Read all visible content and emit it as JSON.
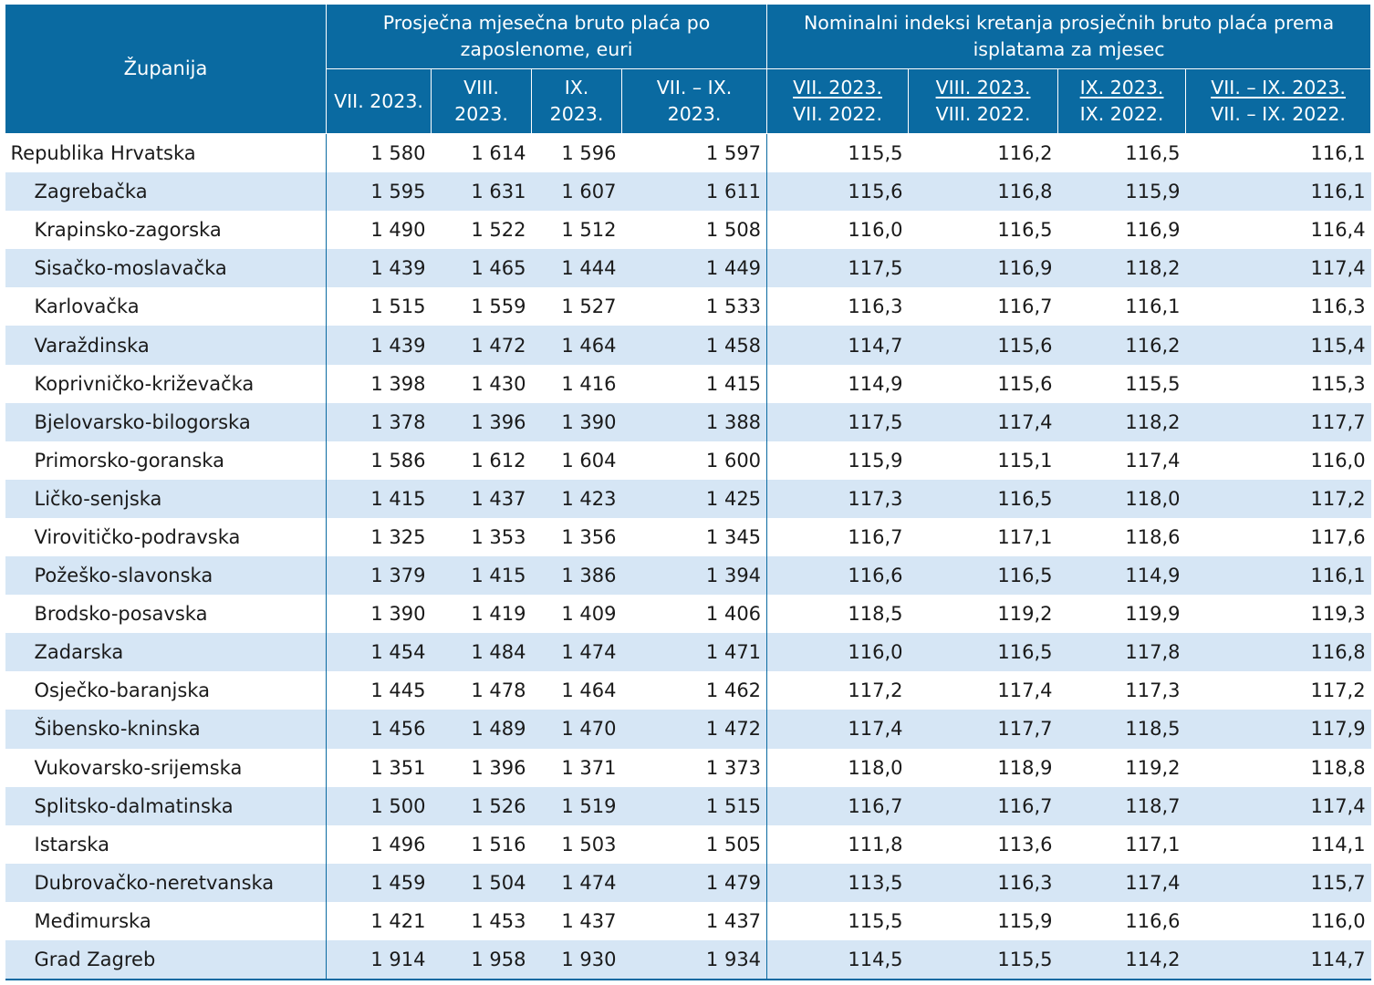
{
  "chart_data": {
    "type": "table",
    "header": {
      "county": "Županija",
      "group_wage": "Prosječna mjesečna bruto plaća po zaposlenome, euri",
      "group_index": "Nominalni indeksi kretanja prosječnih bruto plaća prema isplatama za mjesec",
      "wage_columns": [
        "VII. 2023.",
        "VIII. 2023.",
        "IX. 2023.",
        "VII. – IX. 2023."
      ],
      "index_columns": [
        {
          "num": "VII. 2023.",
          "den": "VII. 2022."
        },
        {
          "num": "VIII. 2023.",
          "den": "VIII. 2022."
        },
        {
          "num": "IX. 2023.",
          "den": "IX. 2022."
        },
        {
          "num": "VII. – IX. 2023.",
          "den": "VII. – IX. 2022."
        }
      ]
    },
    "rows": [
      {
        "name": "Republika Hrvatska",
        "values": [
          "1 580",
          "1 614",
          "1 596",
          "1 597",
          "115,5",
          "116,2",
          "116,5",
          "116,1"
        ]
      },
      {
        "name": "Zagrebačka",
        "values": [
          "1 595",
          "1 631",
          "1 607",
          "1 611",
          "115,6",
          "116,8",
          "115,9",
          "116,1"
        ]
      },
      {
        "name": "Krapinsko-zagorska",
        "values": [
          "1 490",
          "1 522",
          "1 512",
          "1 508",
          "116,0",
          "116,5",
          "116,9",
          "116,4"
        ]
      },
      {
        "name": "Sisačko-moslavačka",
        "values": [
          "1 439",
          "1 465",
          "1 444",
          "1 449",
          "117,5",
          "116,9",
          "118,2",
          "117,4"
        ]
      },
      {
        "name": "Karlovačka",
        "values": [
          "1 515",
          "1 559",
          "1 527",
          "1 533",
          "116,3",
          "116,7",
          "116,1",
          "116,3"
        ]
      },
      {
        "name": "Varaždinska",
        "values": [
          "1 439",
          "1 472",
          "1 464",
          "1 458",
          "114,7",
          "115,6",
          "116,2",
          "115,4"
        ]
      },
      {
        "name": "Koprivničko-križevačka",
        "values": [
          "1 398",
          "1 430",
          "1 416",
          "1 415",
          "114,9",
          "115,6",
          "115,5",
          "115,3"
        ]
      },
      {
        "name": "Bjelovarsko-bilogorska",
        "values": [
          "1 378",
          "1 396",
          "1 390",
          "1 388",
          "117,5",
          "117,4",
          "118,2",
          "117,7"
        ]
      },
      {
        "name": "Primorsko-goranska",
        "values": [
          "1 586",
          "1 612",
          "1 604",
          "1 600",
          "115,9",
          "115,1",
          "117,4",
          "116,0"
        ]
      },
      {
        "name": "Ličko-senjska",
        "values": [
          "1 415",
          "1 437",
          "1 423",
          "1 425",
          "117,3",
          "116,5",
          "118,0",
          "117,2"
        ]
      },
      {
        "name": "Virovitičko-podravska",
        "values": [
          "1 325",
          "1 353",
          "1 356",
          "1 345",
          "116,7",
          "117,1",
          "118,6",
          "117,6"
        ]
      },
      {
        "name": "Požeško-slavonska",
        "values": [
          "1 379",
          "1 415",
          "1 386",
          "1 394",
          "116,6",
          "116,5",
          "114,9",
          "116,1"
        ]
      },
      {
        "name": "Brodsko-posavska",
        "values": [
          "1 390",
          "1 419",
          "1 409",
          "1 406",
          "118,5",
          "119,2",
          "119,9",
          "119,3"
        ]
      },
      {
        "name": "Zadarska",
        "values": [
          "1 454",
          "1 484",
          "1 474",
          "1 471",
          "116,0",
          "116,5",
          "117,8",
          "116,8"
        ]
      },
      {
        "name": "Osječko-baranjska",
        "values": [
          "1 445",
          "1 478",
          "1 464",
          "1 462",
          "117,2",
          "117,4",
          "117,3",
          "117,2"
        ]
      },
      {
        "name": "Šibensko-kninska",
        "values": [
          "1 456",
          "1 489",
          "1 470",
          "1 472",
          "117,4",
          "117,7",
          "118,5",
          "117,9"
        ]
      },
      {
        "name": "Vukovarsko-srijemska",
        "values": [
          "1 351",
          "1 396",
          "1 371",
          "1 373",
          "118,0",
          "118,9",
          "119,2",
          "118,8"
        ]
      },
      {
        "name": "Splitsko-dalmatinska",
        "values": [
          "1 500",
          "1 526",
          "1 519",
          "1 515",
          "116,7",
          "116,7",
          "118,7",
          "117,4"
        ]
      },
      {
        "name": "Istarska",
        "values": [
          "1 496",
          "1 516",
          "1 503",
          "1 505",
          "111,8",
          "113,6",
          "117,1",
          "114,1"
        ]
      },
      {
        "name": "Dubrovačko-neretvanska",
        "values": [
          "1 459",
          "1 504",
          "1 474",
          "1 479",
          "113,5",
          "116,3",
          "117,4",
          "115,7"
        ]
      },
      {
        "name": "Međimurska",
        "values": [
          "1 421",
          "1 453",
          "1 437",
          "1 437",
          "115,5",
          "115,9",
          "116,6",
          "116,0"
        ]
      },
      {
        "name": "Grad Zagreb",
        "values": [
          "1 914",
          "1 958",
          "1 930",
          "1 934",
          "114,5",
          "115,5",
          "114,2",
          "114,7"
        ]
      }
    ],
    "colors": {
      "header_bg": "#0a6aa1",
      "header_text": "#ffffff",
      "stripe": "#d6e6f5",
      "rule": "#0a6aa1"
    }
  }
}
